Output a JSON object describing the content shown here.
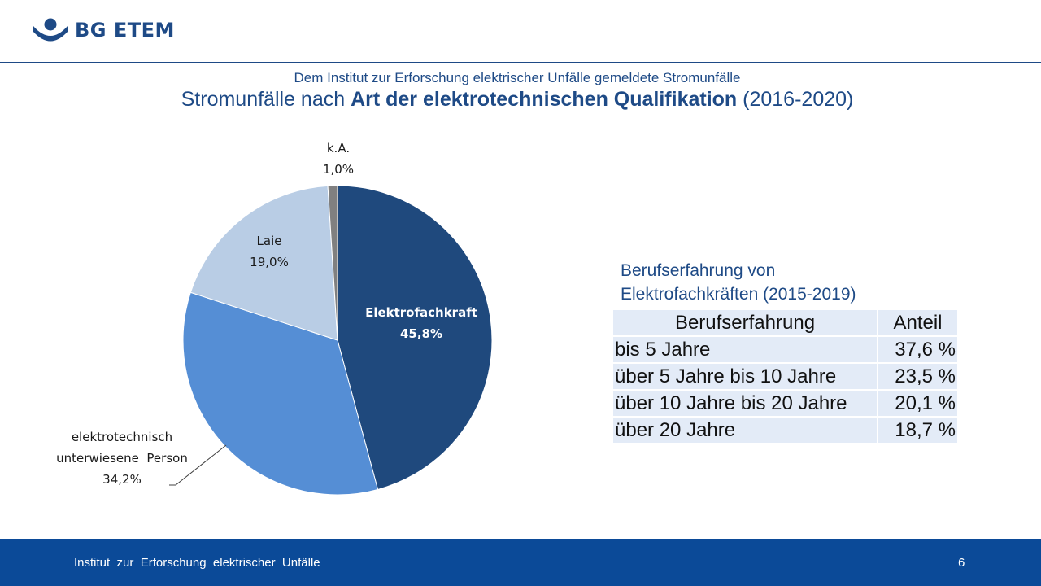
{
  "header": {
    "logo_text": "BG ETEM"
  },
  "subtitle": "Dem Institut zur Erforschung elektrischer Unfälle gemeldete Stromunfälle",
  "title": {
    "prefix": "Stromunfälle nach ",
    "bold": "Art der elektrotechnischen Qualifikation",
    "suffix": " (2016-2020)"
  },
  "chart_data": {
    "type": "pie",
    "slices": [
      {
        "label": "Elektrofachkraft",
        "value": 45.8,
        "value_label": "45,8%",
        "color": "#1f497d"
      },
      {
        "label_lines": [
          "elektrotechnisch",
          "unterwiesene  Person"
        ],
        "value": 34.2,
        "value_label": "34,2%",
        "color": "#558ed5"
      },
      {
        "label": "Laie",
        "value": 19.0,
        "value_label": "19,0%",
        "color": "#b9cde5"
      },
      {
        "label": "k.A.",
        "value": 1.0,
        "value_label": "1,0%",
        "color": "#808080"
      }
    ]
  },
  "table": {
    "caption_lines": [
      "Berufserfahrung von",
      "Elektrofachkräften (2015-2019)"
    ],
    "headers": [
      "Berufserfahrung",
      "Anteil"
    ],
    "rows": [
      [
        "bis 5 Jahre",
        "37,6 %"
      ],
      [
        "über 5 Jahre bis 10 Jahre",
        "23,5 %"
      ],
      [
        "über 10 Jahre bis 20 Jahre",
        "20,1 %"
      ],
      [
        "über 20 Jahre",
        "18,7 %"
      ]
    ]
  },
  "footer": {
    "text": "Institut  zur  Erforschung  elektrischer  Unfälle",
    "page": "6"
  }
}
